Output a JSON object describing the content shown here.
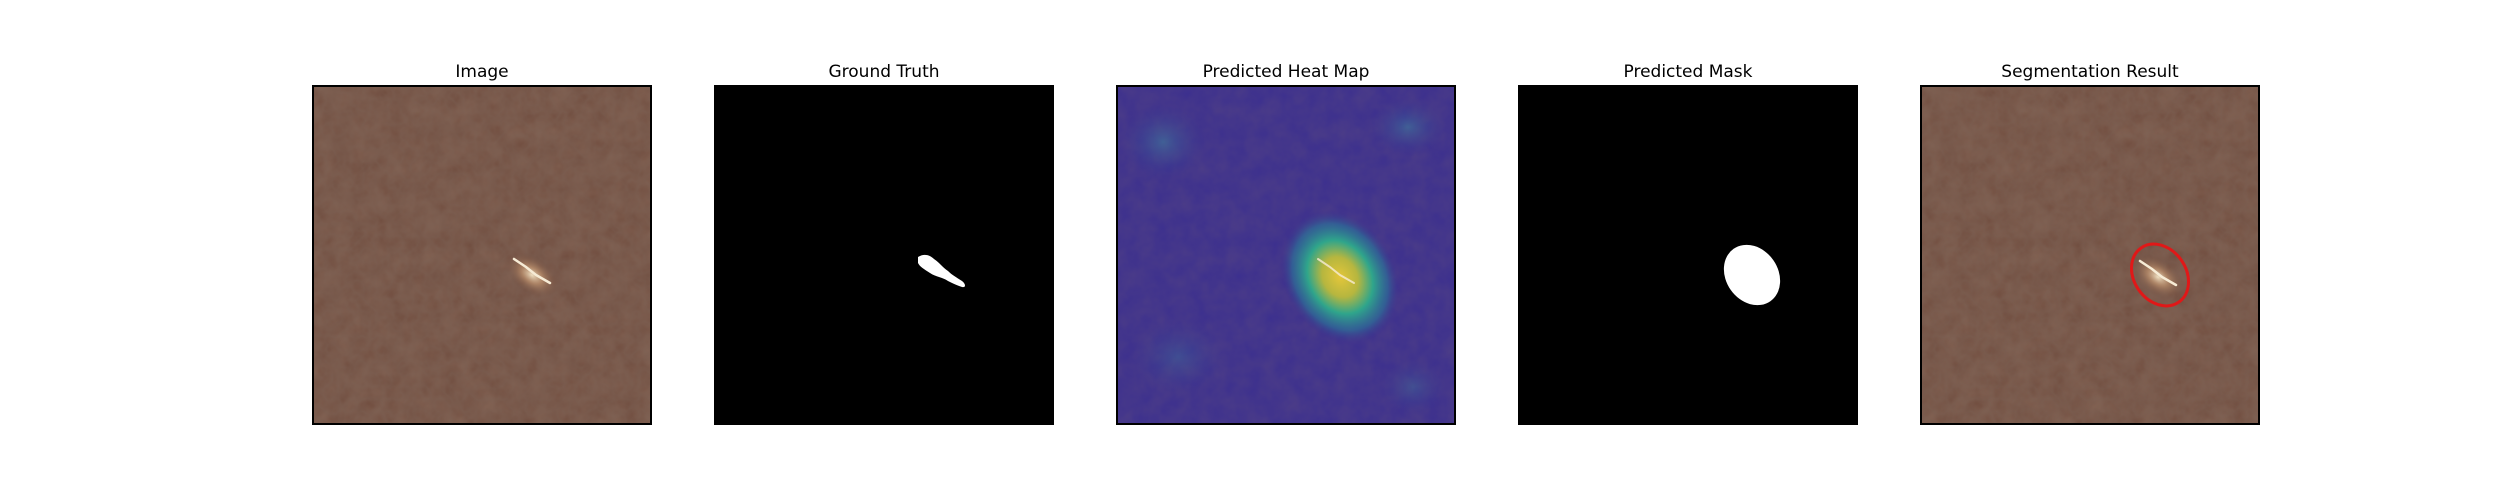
{
  "panels": [
    {
      "id": "image",
      "title": "Image"
    },
    {
      "id": "ground-truth",
      "title": "Ground Truth"
    },
    {
      "id": "heat-map",
      "title": "Predicted Heat Map"
    },
    {
      "id": "predicted-mask",
      "title": "Predicted Mask"
    },
    {
      "id": "segmentation-result",
      "title": "Segmentation Result"
    }
  ],
  "colors": {
    "leather": "#6e4a3c",
    "leather_dark": "#4e3428",
    "mask_background": "#000000",
    "mask_foreground": "#ffffff",
    "heat_low": "#3b2f8f",
    "heat_mid": "#2a9c8a",
    "heat_high": "#d8c23a",
    "contour": "#e01818"
  }
}
